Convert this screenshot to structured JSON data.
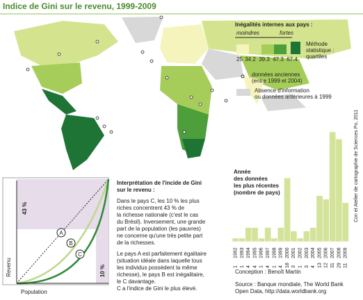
{
  "header": {
    "title": "Indice de Gini sur le revenu, 1999-2009"
  },
  "legend": {
    "title": "Inégalités internes aux pays :",
    "low": "moindres",
    "high": "fortes",
    "colors": [
      "#f6f4bd",
      "#d4e48e",
      "#a6cd5a",
      "#4c9f3a",
      "#1e7434"
    ],
    "breaks": [
      25,
      34.2,
      39.3,
      47.3,
      67.4
    ],
    "method": [
      "Méthode",
      "statistique :",
      "quartiles"
    ],
    "old_data": [
      "données anciennes",
      "(entre 1999 et 2004)"
    ],
    "no_data": [
      "Absence d'information",
      "ou données antérieures à 1999"
    ]
  },
  "credit": "Con et Atelier de cartographie de Sciences Po, 2011",
  "lorenz": {
    "y_label": "Revenu",
    "x_label": "Population",
    "top_share": "43 %",
    "top_pop": "10 %",
    "curves": [
      "A",
      "B",
      "C"
    ]
  },
  "interpretation": {
    "title": [
      "Interprétation de l'incide de Gini",
      "sur le revenu :"
    ],
    "p1": [
      "Dans le pays C, les 10 % les plus",
      "riches concentrent 43 % de",
      "la richesse nationale (c'est le cas",
      "du Brésil). Inversement, une grande",
      "part de la population (les pauvres)",
      "ne concerne qu'une très petite part",
      "de la richesses."
    ],
    "p2": [
      "Le pays A est parfaitement égalitaire",
      "(situation idéale dans laquelle tous",
      "les individus possèdent la même",
      "richesse), le pays B est inégalitaire,",
      "le C davantage.",
      "C a l'indice de Gini le plus élevé."
    ]
  },
  "footer": {
    "conception": "Conception : Benoît Martin",
    "source": [
      "Source : Banque mondiale, The World Bank",
      "Open Data, http://data.worldbank.org"
    ]
  },
  "chart_data": {
    "type": "bar",
    "title": [
      "Année",
      "des données",
      "les plus récentes",
      "(nombre de pays)"
    ],
    "color": "#d3e39a",
    "categories": [
      "1992",
      "1993",
      "1994",
      "1995",
      "1996",
      "1997",
      "1998",
      "1999",
      "2000",
      "2001",
      "2002",
      "2003",
      "2004",
      "2005",
      "2006",
      "2007",
      "2008",
      "2009"
    ],
    "values": [
      1,
      1,
      4,
      4,
      1,
      4,
      1,
      4,
      18,
      3,
      1,
      3,
      4,
      13,
      12,
      31,
      29,
      11
    ]
  }
}
